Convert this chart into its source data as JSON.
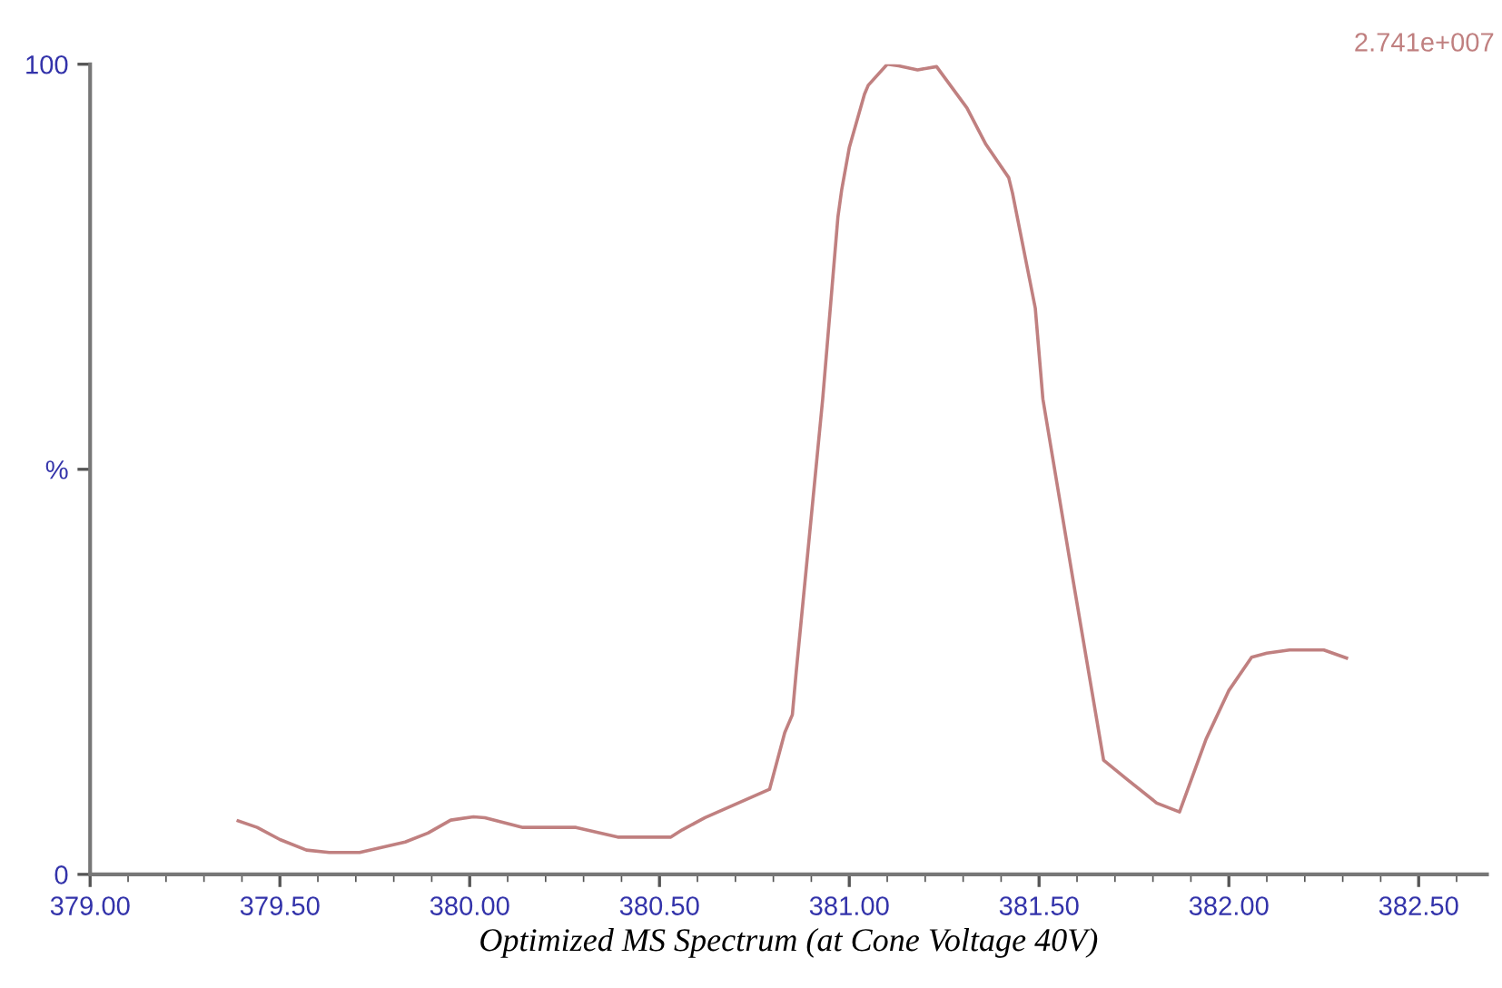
{
  "chart_data": {
    "type": "line",
    "xlabel": "Optimized MS Spectrum (at Cone Voltage 40V)",
    "annotations": [
      "2.741e+007"
    ],
    "x": [
      379.39,
      379.44,
      379.5,
      379.57,
      379.63,
      379.71,
      379.83,
      379.89,
      379.95,
      380.01,
      380.04,
      380.14,
      380.28,
      380.39,
      380.53,
      380.56,
      380.62,
      380.79,
      380.83,
      380.85,
      380.86,
      380.93,
      380.97,
      380.98,
      381.0,
      381.04,
      381.05,
      381.1,
      381.13,
      381.18,
      381.23,
      381.31,
      381.36,
      381.42,
      381.43,
      381.49,
      381.51,
      381.59,
      381.67,
      381.73,
      381.81,
      381.87,
      381.94,
      382.0,
      382.06,
      382.1,
      382.16,
      382.25,
      382.31
    ],
    "series": [
      {
        "color": "#c08080",
        "values": [
          6.6,
          5.8,
          4.3,
          3.0,
          2.7,
          2.7,
          4.0,
          5.1,
          6.7,
          7.1,
          7.0,
          5.8,
          5.8,
          4.6,
          4.6,
          5.5,
          7.0,
          10.5,
          17.5,
          19.7,
          24.9,
          58.7,
          81.1,
          84.5,
          89.7,
          96.3,
          97.4,
          100,
          99.8,
          99.3,
          99.7,
          94.6,
          90.1,
          86.0,
          84.1,
          69.9,
          58.7,
          36.2,
          14.1,
          11.8,
          8.8,
          7.7,
          16.7,
          22.7,
          26.8,
          27.3,
          27.7,
          27.7,
          26.7
        ]
      }
    ],
    "xlim": [
      379.0,
      382.68
    ],
    "ylim": [
      0,
      100
    ],
    "xticks": [
      {
        "value": 379.0,
        "label": "379.00"
      },
      {
        "value": 379.5,
        "label": "379.50"
      },
      {
        "value": 380.0,
        "label": "380.00"
      },
      {
        "value": 380.5,
        "label": "380.50"
      },
      {
        "value": 381.0,
        "label": "381.00"
      },
      {
        "value": 381.5,
        "label": "381.50"
      },
      {
        "value": 382.0,
        "label": "382.00"
      },
      {
        "value": 382.5,
        "label": "382.50"
      }
    ],
    "yticks": [
      0,
      {
        "value": 50,
        "label": "%"
      },
      100
    ],
    "grid": false,
    "legend": false,
    "marker": "none",
    "line_style": "solid"
  }
}
